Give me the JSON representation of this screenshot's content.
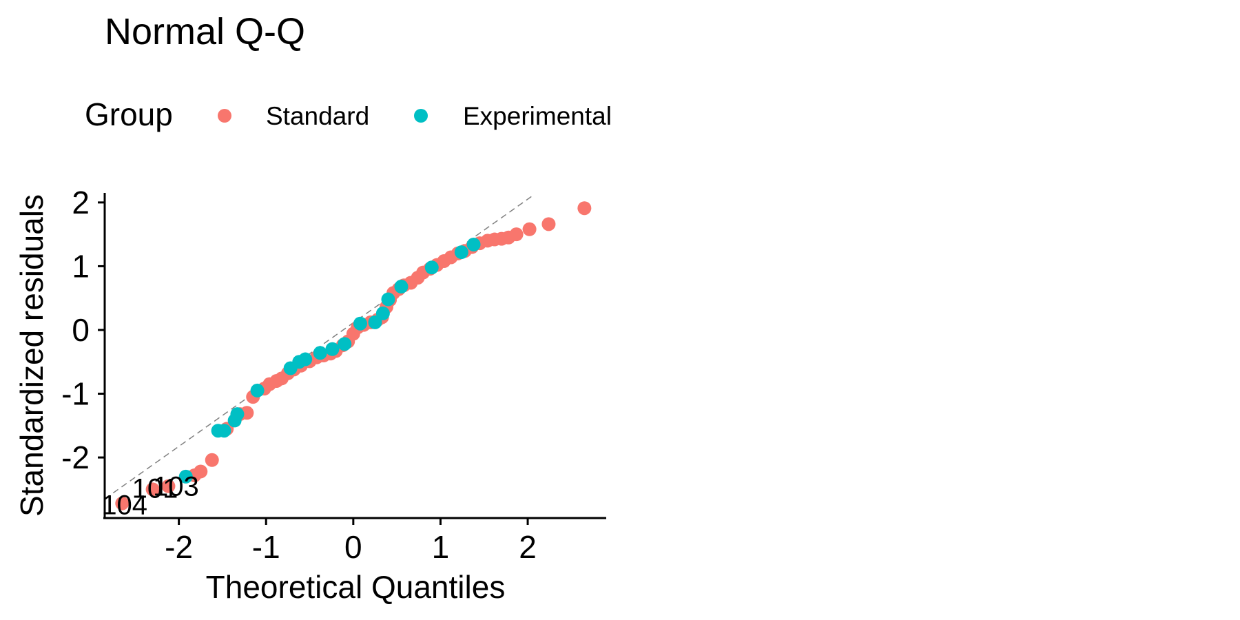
{
  "chart_data": {
    "type": "scatter",
    "title": "Normal Q-Q",
    "xlabel": "Theoretical Quantiles",
    "ylabel": "Standardized residuals",
    "xlim": [
      -2.85,
      2.9
    ],
    "ylim": [
      -2.95,
      2.15
    ],
    "x_ticks": [
      -2,
      -1,
      0,
      1,
      2
    ],
    "y_ticks": [
      -2,
      -1,
      0,
      1,
      2
    ],
    "grid": false,
    "legend": {
      "title": "Group",
      "placement": "top",
      "entries": [
        {
          "name": "Standard",
          "color": "#F8766D"
        },
        {
          "name": "Experimental",
          "color": "#00BFC4"
        }
      ]
    },
    "reference_line": {
      "style": "dashed",
      "color": "#808080",
      "points": [
        [
          -2.85,
          -2.65
        ],
        [
          2.05,
          2.1
        ]
      ]
    },
    "annotations": [
      {
        "text": "104",
        "x": -2.65,
        "y": -2.74
      },
      {
        "text": "103",
        "x": -2.06,
        "y": -2.45
      },
      {
        "text": "101",
        "x": -2.3,
        "y": -2.48
      }
    ],
    "series": [
      {
        "name": "Standard",
        "color": "#F8766D",
        "points": [
          [
            -2.65,
            -2.72
          ],
          [
            -2.3,
            -2.5
          ],
          [
            -2.12,
            -2.45
          ],
          [
            -1.82,
            -2.28
          ],
          [
            -1.75,
            -2.22
          ],
          [
            -1.62,
            -2.04
          ],
          [
            -1.45,
            -1.55
          ],
          [
            -1.3,
            -1.32
          ],
          [
            -1.22,
            -1.3
          ],
          [
            -1.15,
            -1.05
          ],
          [
            -1.02,
            -0.92
          ],
          [
            -0.96,
            -0.85
          ],
          [
            -0.88,
            -0.8
          ],
          [
            -0.82,
            -0.76
          ],
          [
            -0.75,
            -0.68
          ],
          [
            -0.68,
            -0.62
          ],
          [
            -0.6,
            -0.56
          ],
          [
            -0.5,
            -0.49
          ],
          [
            -0.42,
            -0.43
          ],
          [
            -0.34,
            -0.4
          ],
          [
            -0.26,
            -0.37
          ],
          [
            -0.2,
            -0.33
          ],
          [
            -0.12,
            -0.24
          ],
          [
            -0.06,
            -0.18
          ],
          [
            0.0,
            -0.06
          ],
          [
            0.05,
            0.04
          ],
          [
            0.12,
            0.08
          ],
          [
            0.2,
            0.12
          ],
          [
            0.28,
            0.16
          ],
          [
            0.33,
            0.2
          ],
          [
            0.38,
            0.36
          ],
          [
            0.42,
            0.47
          ],
          [
            0.46,
            0.58
          ],
          [
            0.52,
            0.64
          ],
          [
            0.58,
            0.7
          ],
          [
            0.66,
            0.74
          ],
          [
            0.74,
            0.82
          ],
          [
            0.8,
            0.9
          ],
          [
            0.88,
            0.96
          ],
          [
            0.96,
            1.02
          ],
          [
            1.04,
            1.08
          ],
          [
            1.12,
            1.14
          ],
          [
            1.2,
            1.2
          ],
          [
            1.28,
            1.24
          ],
          [
            1.36,
            1.3
          ],
          [
            1.45,
            1.36
          ],
          [
            1.54,
            1.4
          ],
          [
            1.62,
            1.42
          ],
          [
            1.7,
            1.43
          ],
          [
            1.78,
            1.45
          ],
          [
            1.87,
            1.5
          ],
          [
            2.02,
            1.58
          ],
          [
            2.24,
            1.66
          ],
          [
            2.65,
            1.91
          ]
        ]
      },
      {
        "name": "Experimental",
        "color": "#00BFC4",
        "points": [
          [
            -1.92,
            -2.3
          ],
          [
            -1.55,
            -1.58
          ],
          [
            -1.48,
            -1.58
          ],
          [
            -1.36,
            -1.42
          ],
          [
            -1.33,
            -1.32
          ],
          [
            -1.1,
            -0.95
          ],
          [
            -0.72,
            -0.6
          ],
          [
            -0.62,
            -0.5
          ],
          [
            -0.55,
            -0.46
          ],
          [
            -0.38,
            -0.36
          ],
          [
            -0.24,
            -0.3
          ],
          [
            -0.1,
            -0.22
          ],
          [
            0.08,
            0.1
          ],
          [
            0.25,
            0.12
          ],
          [
            0.34,
            0.26
          ],
          [
            0.4,
            0.48
          ],
          [
            0.55,
            0.68
          ],
          [
            0.9,
            0.98
          ],
          [
            1.24,
            1.22
          ],
          [
            1.38,
            1.34
          ]
        ]
      }
    ]
  }
}
